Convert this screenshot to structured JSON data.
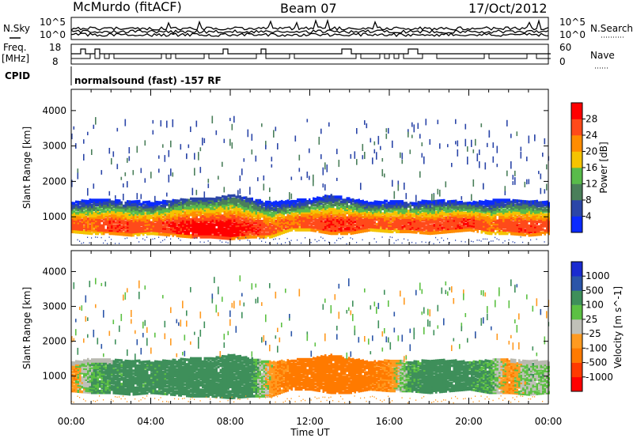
{
  "header": {
    "station": "McMurdo (fitACF)",
    "beam": "Beam 07",
    "date": "17/Oct/2012"
  },
  "top_panels": {
    "nsky_label": "N.Sky",
    "nsearch_label": "N.Search",
    "freq_label": "Freq.",
    "freq_unit": "[MHz]",
    "nave_label": "Nave",
    "cpid_label": "CPID",
    "cpid_value": "normalsound (fast) -157 RF",
    "noise_left_ticks": [
      "10^5",
      "10^0"
    ],
    "noise_right_ticks": [
      "10^5",
      "10^0"
    ],
    "freq_ticks": [
      "18",
      "8"
    ],
    "nave_ticks": [
      "60",
      "0"
    ]
  },
  "colors": {
    "power_scale": [
      "#0a2aff",
      "#2b46a8",
      "#4a7f5a",
      "#59bb4a",
      "#f5c300",
      "#ff8c00",
      "#ff4a1a",
      "#ff0000"
    ],
    "velocity_scale": [
      "#ff0000",
      "#ff3a00",
      "#ff7a00",
      "#ff9a20",
      "#c0c0b8",
      "#5cc043",
      "#3e8f5a",
      "#2b55a8",
      "#1a2bd0"
    ],
    "ground_scatter": "#b9b9b0"
  },
  "chart_data": [
    {
      "type": "heatmap",
      "name": "Power panel",
      "ylabel": "Slant Range [km]",
      "xlabel": "",
      "x_ticks": [
        "00:00",
        "04:00",
        "08:00",
        "12:00",
        "16:00",
        "20:00",
        "00:00"
      ],
      "y_ticks": [
        1000,
        2000,
        3000,
        4000
      ],
      "ylim": [
        200,
        4600
      ],
      "xlim_hours": [
        0,
        24
      ],
      "colorbar": {
        "label": "Power [dB]",
        "ticks": [
          4,
          8,
          12,
          16,
          20,
          24,
          28
        ],
        "range": [
          0,
          32
        ]
      },
      "echo_band": {
        "hours": [
          0,
          1,
          2,
          3,
          4,
          5,
          6,
          7,
          8,
          9,
          10,
          11,
          12,
          13,
          14,
          15,
          16,
          17,
          18,
          19,
          20,
          21,
          22,
          23,
          24
        ],
        "lower_km": [
          650,
          600,
          600,
          550,
          600,
          550,
          500,
          500,
          450,
          500,
          500,
          700,
          700,
          600,
          600,
          700,
          650,
          650,
          600,
          650,
          700,
          600,
          600,
          550,
          600
        ],
        "upper_km": [
          1350,
          1450,
          1400,
          1400,
          1350,
          1400,
          1450,
          1450,
          1550,
          1450,
          1350,
          1400,
          1450,
          1550,
          1450,
          1350,
          1400,
          1350,
          1400,
          1400,
          1350,
          1400,
          1450,
          1400,
          1350
        ],
        "peak_power_db": [
          26,
          24,
          28,
          26,
          25,
          28,
          30,
          30,
          30,
          28,
          25,
          24,
          26,
          27,
          28,
          26,
          25,
          27,
          26,
          27,
          28,
          24,
          26,
          27,
          26
        ]
      }
    },
    {
      "type": "heatmap",
      "name": "Velocity panel",
      "ylabel": "Slant Range [km]",
      "xlabel": "Time UT",
      "x_ticks": [
        "00:00",
        "04:00",
        "08:00",
        "12:00",
        "16:00",
        "20:00",
        "00:00"
      ],
      "y_ticks": [
        1000,
        2000,
        3000,
        4000
      ],
      "ylim": [
        200,
        4600
      ],
      "xlim_hours": [
        0,
        24
      ],
      "colorbar": {
        "label": "Velocity [m s^-1]",
        "ticks": [
          1000,
          500,
          100,
          25,
          -25,
          -100,
          -500,
          -1000
        ]
      },
      "echo_band": {
        "hours": [
          0,
          1,
          2,
          3,
          4,
          5,
          6,
          7,
          8,
          9,
          10,
          11,
          12,
          13,
          14,
          15,
          16,
          17,
          18,
          19,
          20,
          21,
          22,
          23,
          24
        ],
        "velocity_ms": [
          -150,
          80,
          120,
          150,
          130,
          140,
          150,
          160,
          150,
          140,
          -100,
          -200,
          -250,
          -300,
          -250,
          -200,
          -150,
          100,
          150,
          200,
          120,
          100,
          -150,
          30,
          20
        ]
      }
    }
  ]
}
